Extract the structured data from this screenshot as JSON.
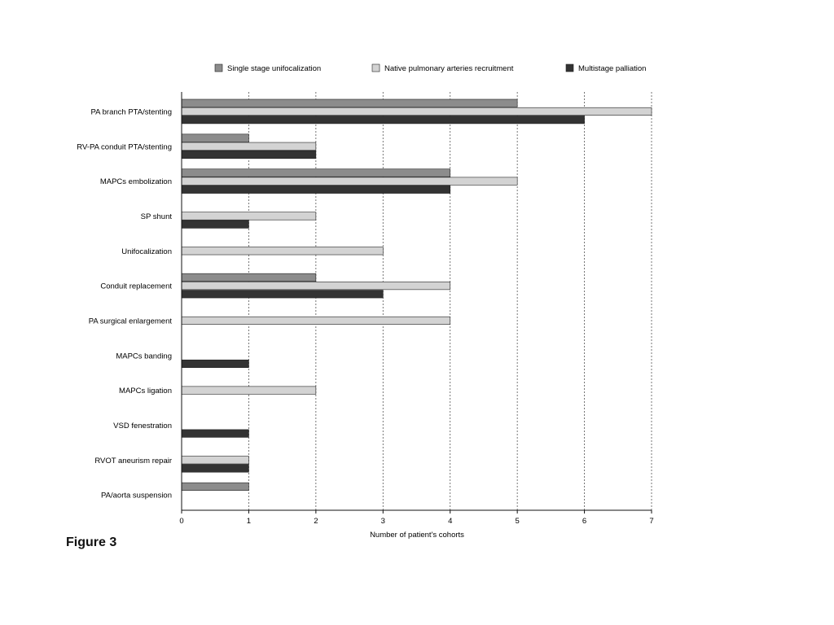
{
  "figure_label": "Figure 3",
  "chart_data": {
    "type": "bar",
    "orientation": "horizontal",
    "xlabel": "Number of patient's cohorts",
    "ylabel": "",
    "xlim": [
      0,
      7
    ],
    "xticks": [
      "0",
      "1",
      "2",
      "3",
      "4",
      "5",
      "6",
      "7"
    ],
    "grid": "vertical dashed",
    "legend_position": "top",
    "categories": [
      "PA branch PTA/stenting",
      "RV-PA conduit PTA/stenting",
      "MAPCs embolization",
      "SP shunt",
      "Unifocalization",
      "Conduit replacement",
      "PA surgical enlargement",
      "MAPCs banding",
      "MAPCs ligation",
      "VSD fenestration",
      "RVOT aneurism repair",
      "PA/aorta suspension"
    ],
    "series": [
      {
        "name": "Single stage unifocalization",
        "color": "#8c8c8c",
        "values": [
          5,
          1,
          4,
          0,
          0,
          2,
          0,
          0,
          0,
          0,
          0,
          1
        ]
      },
      {
        "name": "Native pulmonary arteries recruitment",
        "color": "#d3d3d3",
        "values": [
          7,
          2,
          5,
          2,
          3,
          4,
          4,
          0,
          2,
          0,
          1,
          0
        ]
      },
      {
        "name": "Multistage palliation",
        "color": "#333333",
        "values": [
          6,
          2,
          4,
          1,
          0,
          3,
          0,
          1,
          0,
          1,
          1,
          0
        ]
      }
    ]
  }
}
